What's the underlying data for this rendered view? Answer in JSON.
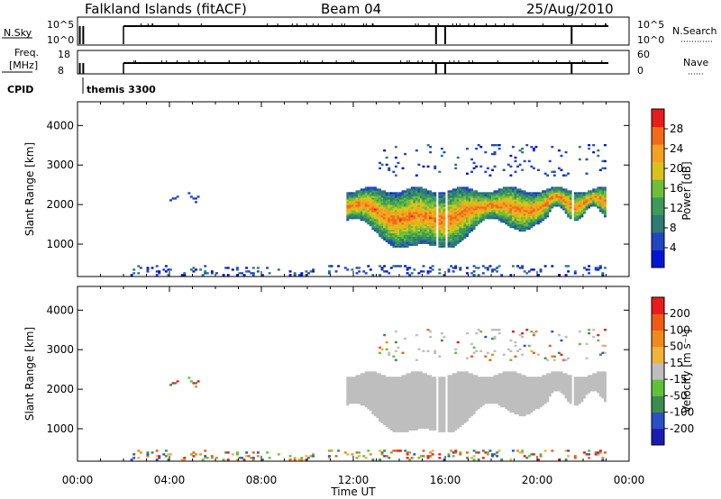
{
  "header": {
    "station": "Falkland Islands (fitACF)",
    "beam": "Beam 04",
    "date": "25/Aug/2010"
  },
  "status_panels": {
    "nsky_label": "N.Sky",
    "nsky_ticks": [
      "10^5",
      "10^0"
    ],
    "nsearch_label": "N.Search",
    "nsearch_ticks": [
      "10^5",
      "10^0"
    ],
    "freq_label_line1": "Freq.",
    "freq_label_line2": "[MHz]",
    "freq_ticks": [
      "18",
      "8"
    ],
    "nave_label": "Nave",
    "nave_ticks": [
      "60",
      "0"
    ],
    "cpid_label": "CPID",
    "cpid_value": "themis 3300",
    "data_gap_start_hours": 0.1,
    "data_gap_end_hours": 2.0,
    "data_end_hours": 23.1,
    "data_dropouts_hours": [
      15.6,
      16.0,
      21.5
    ]
  },
  "chart_data": [
    {
      "type": "heatmap",
      "name": "power",
      "ylabel": "Slant Range [km]",
      "xlabel": "",
      "xlim": [
        0,
        24
      ],
      "ylim": [
        180,
        4600
      ],
      "yticks": [
        "1000",
        "2000",
        "3000",
        "4000"
      ],
      "colorbar_label": "Power [dB]",
      "colorbar_ticks": [
        "28",
        "24",
        "20",
        "16",
        "12",
        "8",
        "4"
      ],
      "colorbar_colors": [
        "#0014d6",
        "#2146c2",
        "#2d7a76",
        "#3c9a5a",
        "#6fbe3a",
        "#d8c21a",
        "#f5a020",
        "#f26a1a",
        "#e81c1c"
      ]
    },
    {
      "type": "heatmap",
      "name": "velocity",
      "ylabel": "Slant Range [km]",
      "xlabel": "Time UT",
      "xlim": [
        0,
        24
      ],
      "ylim": [
        180,
        4600
      ],
      "yticks": [
        "1000",
        "2000",
        "3000",
        "4000"
      ],
      "xticks": [
        "00:00",
        "04:00",
        "08:00",
        "12:00",
        "16:00",
        "20:00",
        "00:00"
      ],
      "colorbar_label": "Velocity [m s⁻¹]",
      "colorbar_ticks": [
        "200",
        "100",
        "50",
        "15",
        "-15",
        "-50",
        "-100",
        "-200"
      ],
      "colorbar_colors": [
        "#1a1ab4",
        "#2a50c8",
        "#3c8c50",
        "#5fc23a",
        "#bebebe",
        "#f0b23a",
        "#f08a1a",
        "#f05a14",
        "#e81c1c"
      ],
      "ground_scatter_color": "#bebebe"
    }
  ]
}
